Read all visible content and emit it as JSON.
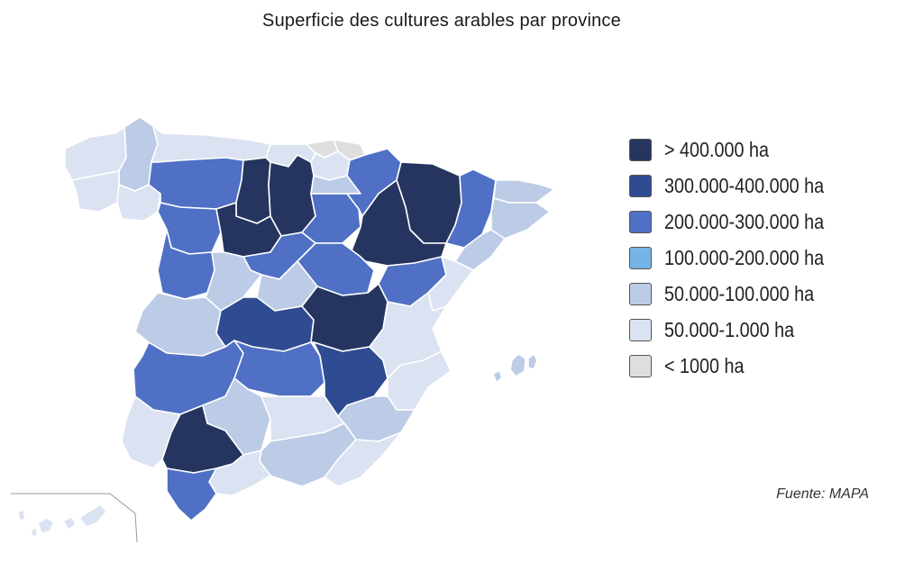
{
  "title": "Superficie des cultures arables par province",
  "source": "Fuente: MAPA",
  "legend": [
    {
      "label": "> 400.000 ha",
      "color": "#263560",
      "key": "c1"
    },
    {
      "label": "300.000-400.000 ha",
      "color": "#2f4b91",
      "key": "c2"
    },
    {
      "label": "200.000-300.000 ha",
      "color": "#4f70c4",
      "key": "c3"
    },
    {
      "label": "100.000-200.000 ha",
      "color": "#74b5e5",
      "key": "c4"
    },
    {
      "label": "50.000-100.000 ha",
      "color": "#bccbe6",
      "key": "c5"
    },
    {
      "label": "50.000-1.000 ha",
      "color": "#dbe2f1",
      "key": "c6"
    },
    {
      "label": "< 1000 ha",
      "color": "#dedede",
      "key": "c7"
    }
  ]
}
